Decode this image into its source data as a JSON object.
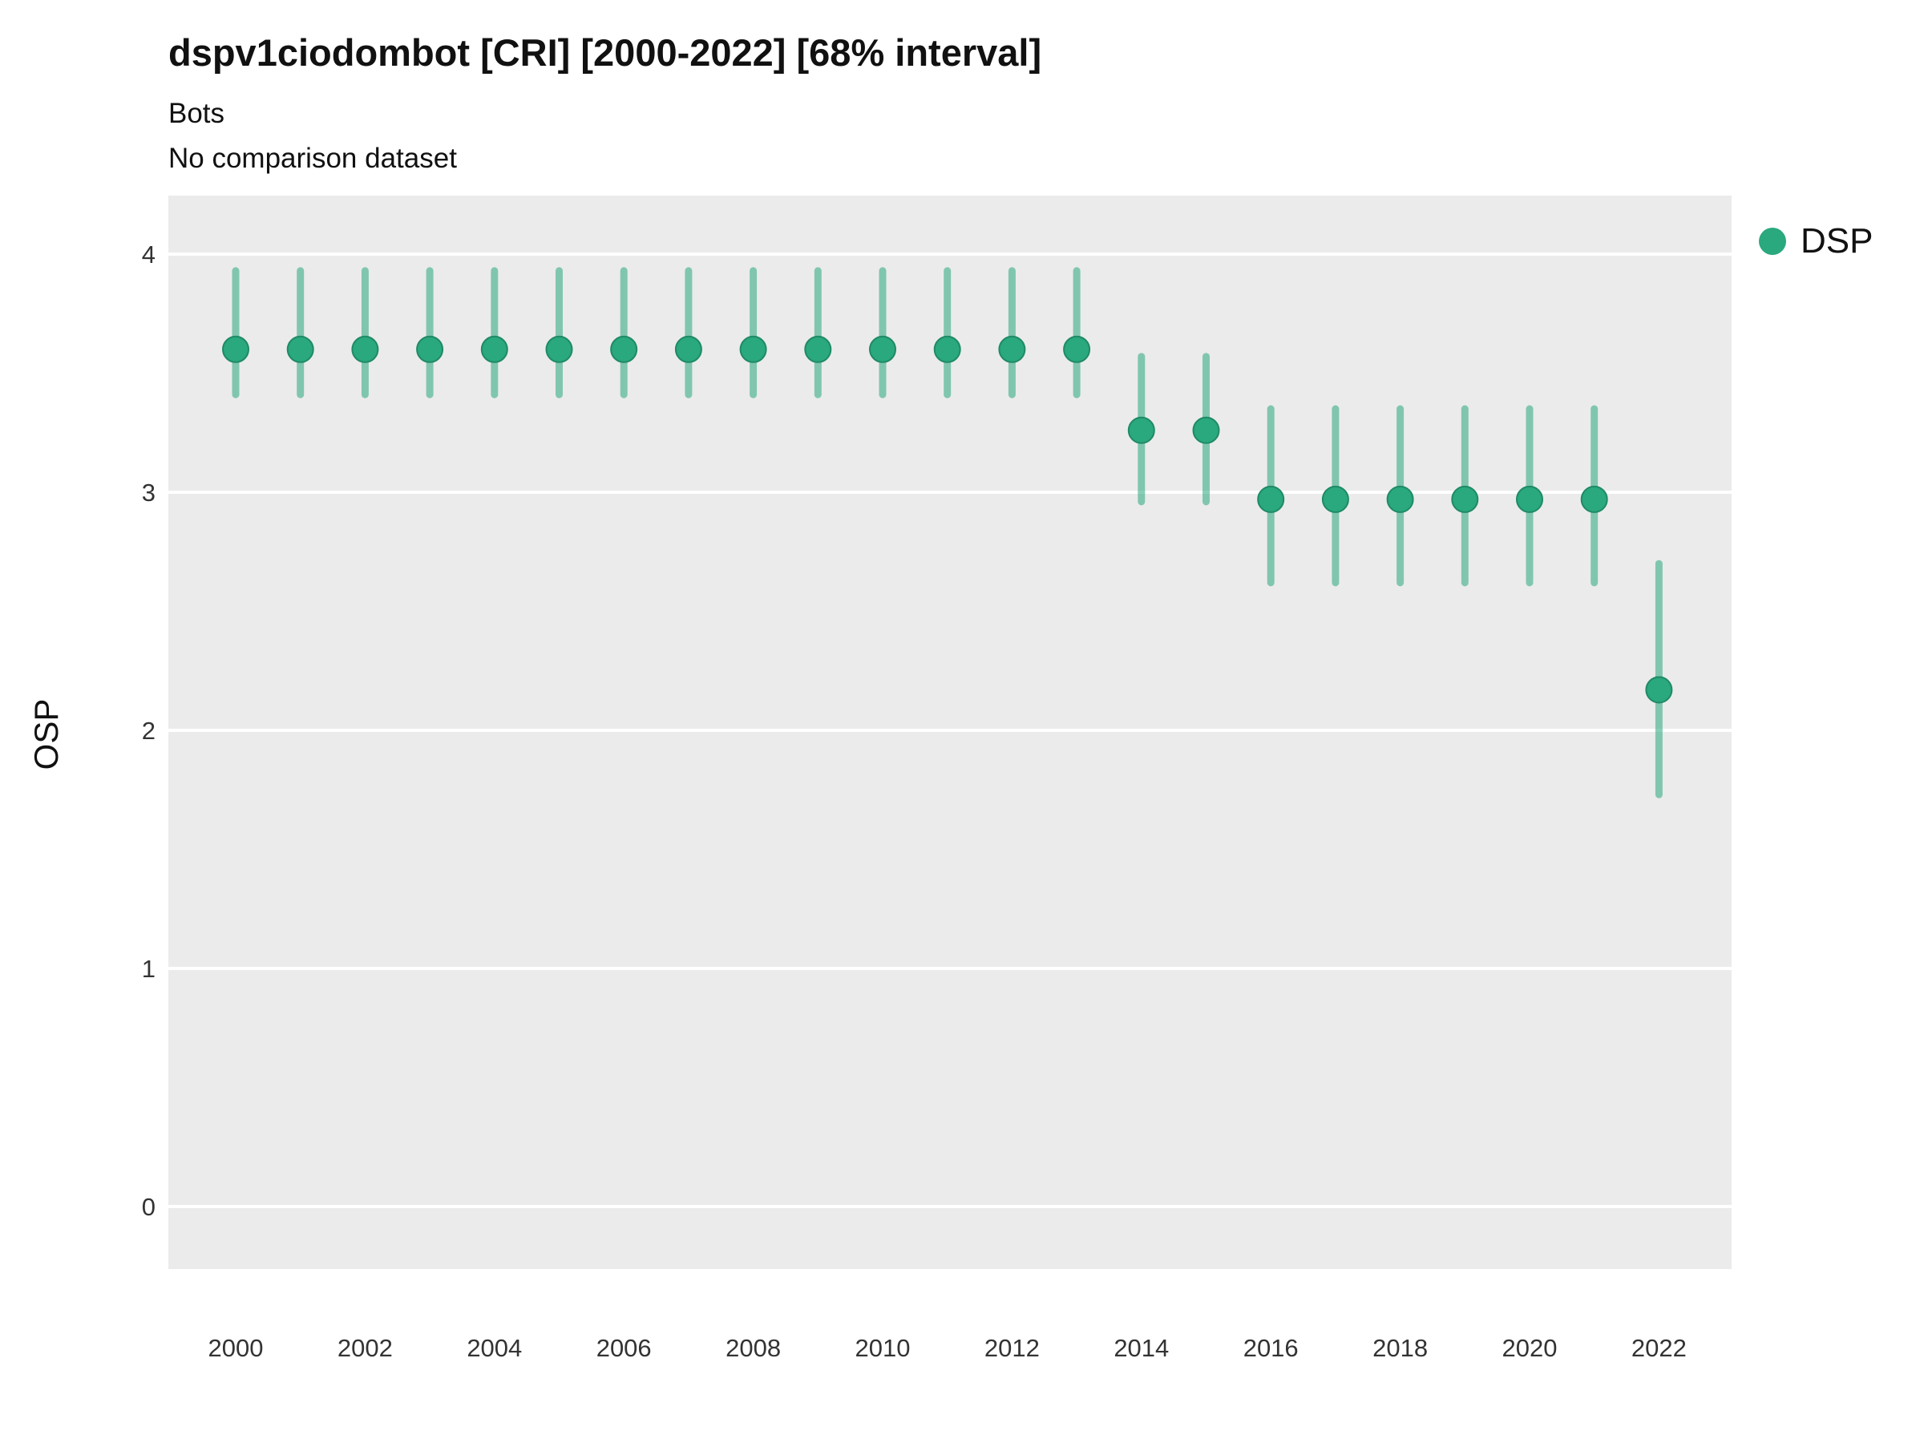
{
  "chart_data": {
    "type": "scatter",
    "subtype": "pointrange",
    "title": "dspv1ciodombot [CRI] [2000-2022] [68% interval]",
    "subtitle": "Bots",
    "note": "No comparison dataset",
    "xlabel": "",
    "ylabel": "OSP",
    "ylim": [
      -0.26,
      4.25
    ],
    "y_ticks": [
      0,
      1,
      2,
      3,
      4
    ],
    "x_ticks": [
      2000,
      2002,
      2004,
      2006,
      2008,
      2010,
      2012,
      2014,
      2016,
      2018,
      2020,
      2022
    ],
    "grid": "major-horizontal-white-on-gray",
    "panel_background": "#EBEBEB",
    "gridline_color": "#FFFFFF",
    "tick_label_color": "#333333",
    "legend": {
      "position": "right",
      "label": "DSP"
    },
    "series": [
      {
        "name": "DSP",
        "color": "#2AA87E",
        "point_stroke": "#1F8A66",
        "interval": "68%",
        "points": [
          {
            "year": 2000,
            "value": 3.6,
            "lower": 3.41,
            "upper": 3.93
          },
          {
            "year": 2001,
            "value": 3.6,
            "lower": 3.41,
            "upper": 3.93
          },
          {
            "year": 2002,
            "value": 3.6,
            "lower": 3.41,
            "upper": 3.93
          },
          {
            "year": 2003,
            "value": 3.6,
            "lower": 3.41,
            "upper": 3.93
          },
          {
            "year": 2004,
            "value": 3.6,
            "lower": 3.41,
            "upper": 3.93
          },
          {
            "year": 2005,
            "value": 3.6,
            "lower": 3.41,
            "upper": 3.93
          },
          {
            "year": 2006,
            "value": 3.6,
            "lower": 3.41,
            "upper": 3.93
          },
          {
            "year": 2007,
            "value": 3.6,
            "lower": 3.41,
            "upper": 3.93
          },
          {
            "year": 2008,
            "value": 3.6,
            "lower": 3.41,
            "upper": 3.93
          },
          {
            "year": 2009,
            "value": 3.6,
            "lower": 3.41,
            "upper": 3.93
          },
          {
            "year": 2010,
            "value": 3.6,
            "lower": 3.41,
            "upper": 3.93
          },
          {
            "year": 2011,
            "value": 3.6,
            "lower": 3.41,
            "upper": 3.93
          },
          {
            "year": 2012,
            "value": 3.6,
            "lower": 3.41,
            "upper": 3.93
          },
          {
            "year": 2013,
            "value": 3.6,
            "lower": 3.41,
            "upper": 3.93
          },
          {
            "year": 2014,
            "value": 3.26,
            "lower": 2.96,
            "upper": 3.57
          },
          {
            "year": 2015,
            "value": 3.26,
            "lower": 2.96,
            "upper": 3.57
          },
          {
            "year": 2016,
            "value": 2.97,
            "lower": 2.62,
            "upper": 3.35
          },
          {
            "year": 2017,
            "value": 2.97,
            "lower": 2.62,
            "upper": 3.35
          },
          {
            "year": 2018,
            "value": 2.97,
            "lower": 2.62,
            "upper": 3.35
          },
          {
            "year": 2019,
            "value": 2.97,
            "lower": 2.62,
            "upper": 3.35
          },
          {
            "year": 2020,
            "value": 2.97,
            "lower": 2.62,
            "upper": 3.35
          },
          {
            "year": 2021,
            "value": 2.97,
            "lower": 2.62,
            "upper": 3.35
          },
          {
            "year": 2022,
            "value": 2.17,
            "lower": 1.73,
            "upper": 2.7
          }
        ]
      }
    ]
  }
}
